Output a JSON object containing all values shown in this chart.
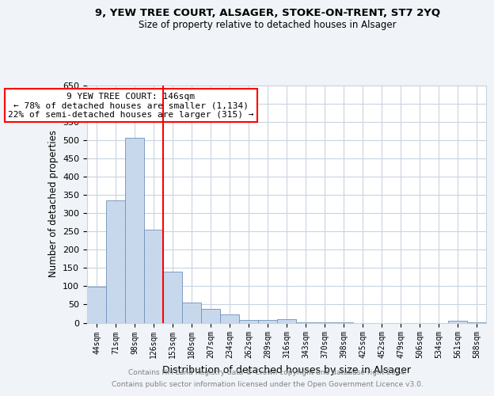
{
  "title1": "9, YEW TREE COURT, ALSAGER, STOKE-ON-TRENT, ST7 2YQ",
  "title2": "Size of property relative to detached houses in Alsager",
  "xlabel": "Distribution of detached houses by size in Alsager",
  "ylabel": "Number of detached properties",
  "categories": [
    "44sqm",
    "71sqm",
    "98sqm",
    "126sqm",
    "153sqm",
    "180sqm",
    "207sqm",
    "234sqm",
    "262sqm",
    "289sqm",
    "316sqm",
    "343sqm",
    "370sqm",
    "398sqm",
    "425sqm",
    "452sqm",
    "479sqm",
    "506sqm",
    "534sqm",
    "561sqm",
    "588sqm"
  ],
  "values": [
    98,
    335,
    505,
    255,
    140,
    55,
    38,
    22,
    8,
    8,
    10,
    2,
    2,
    1,
    0,
    0,
    0,
    0,
    0,
    5,
    2
  ],
  "bar_color": "#c8d8ec",
  "bar_edge_color": "#7090b8",
  "vline_color": "red",
  "vline_x_index": 3.5,
  "annotation_text": "9 YEW TREE COURT: 146sqm\n← 78% of detached houses are smaller (1,134)\n22% of semi-detached houses are larger (315) →",
  "annotation_box_color": "white",
  "annotation_box_edge": "red",
  "footer1": "Contains HM Land Registry data © Crown copyright and database right 2024.",
  "footer2": "Contains public sector information licensed under the Open Government Licence v3.0.",
  "ylim": [
    0,
    650
  ],
  "yticks": [
    0,
    50,
    100,
    150,
    200,
    250,
    300,
    350,
    400,
    450,
    500,
    550,
    600,
    650
  ],
  "bg_color": "#f0f4f8",
  "plot_bg_color": "white",
  "grid_color": "#c8d4e0"
}
